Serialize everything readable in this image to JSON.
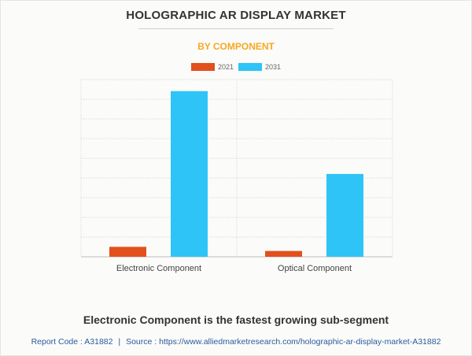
{
  "header": {
    "title": "HOLOGRAPHIC AR DISPLAY MARKET",
    "subtitle": "BY COMPONENT"
  },
  "chart_data": {
    "type": "bar",
    "categories": [
      "Electronic Component",
      "Optical Component"
    ],
    "series": [
      {
        "name": "2021",
        "values": [
          6,
          3.5
        ],
        "color": "#e2501d"
      },
      {
        "name": "2031",
        "values": [
          100,
          50
        ],
        "color": "#2ec4f7"
      }
    ],
    "ylim": [
      0,
      107
    ],
    "y_gridlines": 9,
    "grid": true,
    "legend_position": "top-center"
  },
  "footer": {
    "headline": "Electronic Component is the fastest growing sub-segment",
    "report_code_label": "Report Code : A31882",
    "separator": "|",
    "source_label": "Source : https://www.alliedmarketresearch.com/holographic-ar-display-market-A31882"
  }
}
